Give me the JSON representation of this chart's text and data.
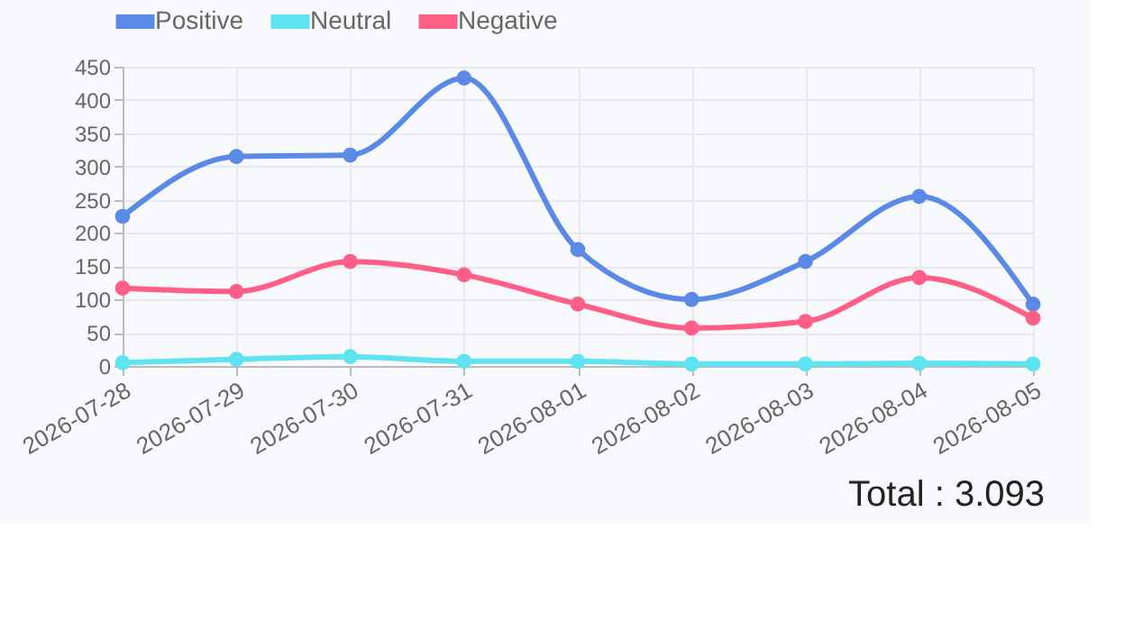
{
  "chart_data": {
    "type": "line",
    "categories": [
      "2026-07-28",
      "2026-07-29",
      "2026-07-30",
      "2026-07-31",
      "2026-08-01",
      "2026-08-02",
      "2026-08-03",
      "2026-08-04",
      "2026-08-05"
    ],
    "series": [
      {
        "name": "Positive",
        "color": "#5b8ae6",
        "values": [
          225,
          315,
          317,
          433,
          175,
          100,
          157,
          255,
          93
        ]
      },
      {
        "name": "Neutral",
        "color": "#5de4f0",
        "values": [
          5,
          10,
          14,
          7,
          7,
          3,
          3,
          4,
          3
        ]
      },
      {
        "name": "Negative",
        "color": "#ff5e86",
        "values": [
          117,
          112,
          157,
          137,
          93,
          57,
          67,
          133,
          72
        ]
      }
    ],
    "ylim": [
      0,
      450
    ],
    "yticks": [
      0,
      50,
      100,
      150,
      200,
      250,
      300,
      350,
      400,
      450
    ],
    "grid": true,
    "legend": "top",
    "marker": "circle",
    "line_style": "solid",
    "annotations": [
      "Total : 3.093"
    ]
  }
}
